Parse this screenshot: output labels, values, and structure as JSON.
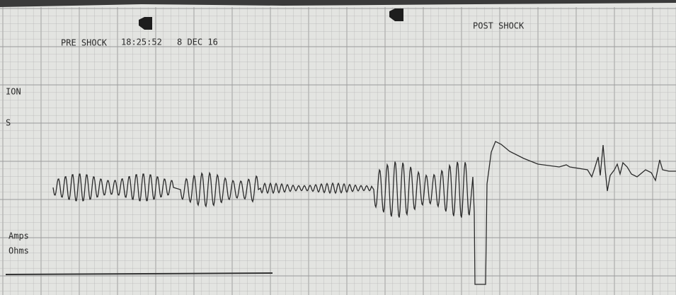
{
  "strip": {
    "pre_label": "PRE SHOCK",
    "time": "18:25:52",
    "date": "8 DEC 16",
    "post_label": "POST SHOCK"
  },
  "side_labels": [
    "ION",
    "S",
    "Amps",
    "Ohms"
  ]
}
